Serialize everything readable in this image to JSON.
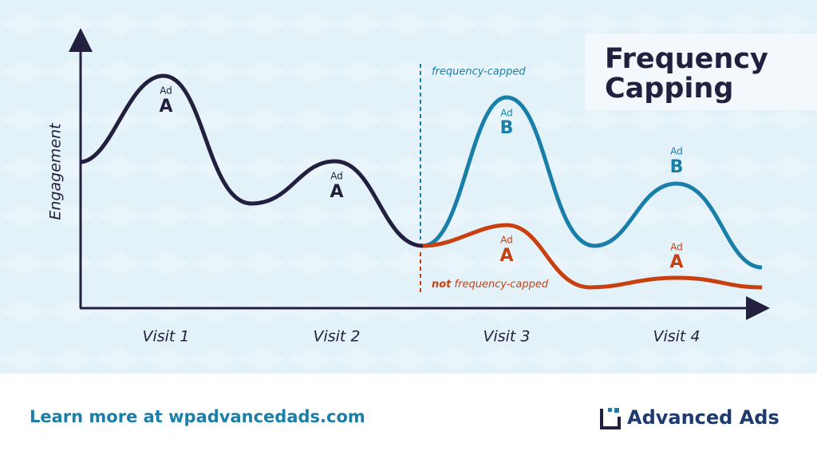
{
  "title": [
    "Frequency",
    "Capping"
  ],
  "y_axis_label": "Engagement",
  "visits": [
    "Visit 1",
    "Visit 2",
    "Visit 3",
    "Visit 4"
  ],
  "ads": [
    {
      "small": "Ad",
      "big": "A"
    },
    {
      "small": "Ad",
      "big": "A"
    },
    {
      "small": "Ad",
      "big": "B"
    },
    {
      "small": "Ad",
      "big": "A"
    },
    {
      "small": "Ad",
      "big": "B"
    },
    {
      "small": "Ad",
      "big": "A"
    }
  ],
  "annotations": {
    "capped": "frequency-capped",
    "not_capped": [
      "not",
      "frequency-capped"
    ]
  },
  "footer": {
    "link": "Learn more at wpadvancedads.com",
    "brand": "Advanced Ads"
  }
}
